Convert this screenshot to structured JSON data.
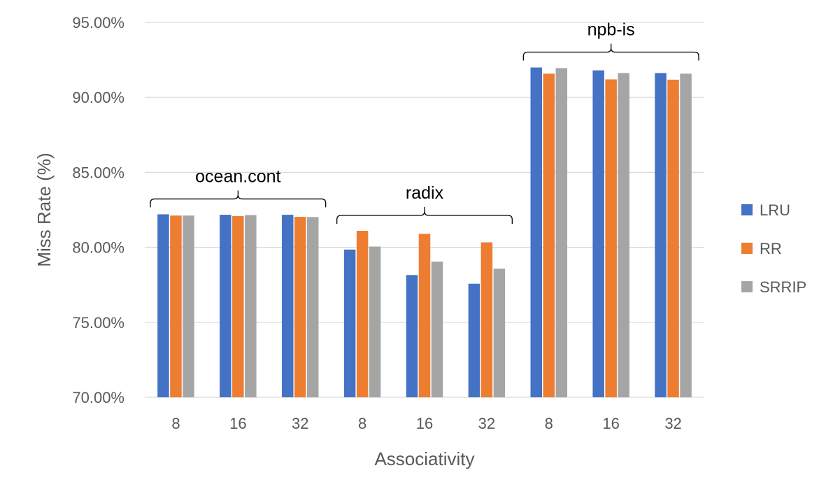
{
  "chart_data": {
    "type": "bar",
    "xlabel": "Associativity",
    "ylabel": "Miss Rate (%)",
    "ylim": [
      0.7,
      0.95
    ],
    "y_ticks": [
      0.7,
      0.75,
      0.8,
      0.85,
      0.9,
      0.95
    ],
    "y_tick_labels": [
      "70.00%",
      "75.00%",
      "80.00%",
      "85.00%",
      "90.00%",
      "95.00%"
    ],
    "grid": true,
    "legend_position": "right",
    "categories": [
      "8",
      "16",
      "32",
      "8",
      "16",
      "32",
      "8",
      "16",
      "32"
    ],
    "groups": [
      {
        "name": "ocean.cont",
        "categories": [
          0,
          1,
          2
        ]
      },
      {
        "name": "radix",
        "categories": [
          3,
          4,
          5
        ]
      },
      {
        "name": "npb-is",
        "categories": [
          6,
          7,
          8
        ]
      }
    ],
    "series": [
      {
        "name": "LRU",
        "color": "#4472c4",
        "values": [
          0.822,
          0.8217,
          0.8217,
          0.7985,
          0.7815,
          0.7757,
          0.9199,
          0.918,
          0.9162
        ]
      },
      {
        "name": "RR",
        "color": "#ed7d31",
        "values": [
          0.8212,
          0.8208,
          0.8203,
          0.811,
          0.809,
          0.8033,
          0.9158,
          0.912,
          0.9118
        ]
      },
      {
        "name": "SRRIP",
        "color": "#a5a5a5",
        "values": [
          0.8212,
          0.8215,
          0.8202,
          0.8005,
          0.7905,
          0.7858,
          0.9195,
          0.9162,
          0.9158
        ]
      }
    ]
  }
}
